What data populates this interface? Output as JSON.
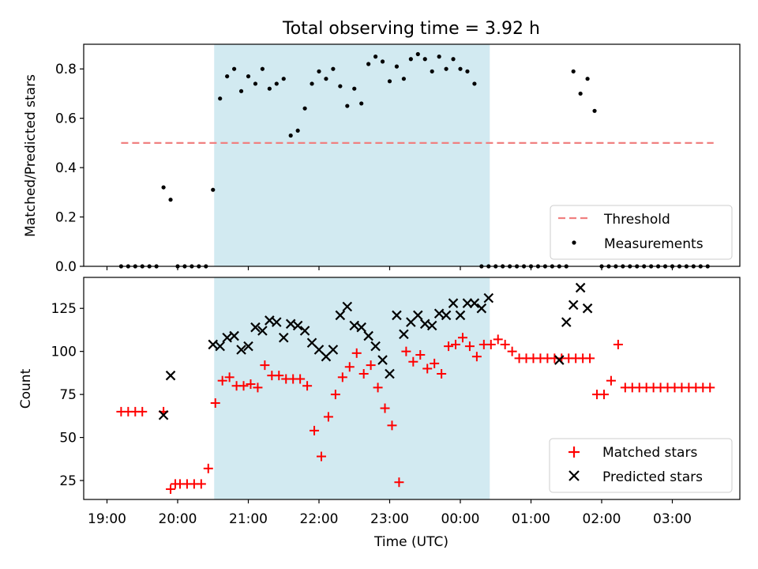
{
  "figure": {
    "title": "Total observing time = 3.92 h"
  },
  "chart_data": [
    {
      "type": "scatter",
      "title": "Total observing time = 3.92 h",
      "ylabel": "Matched/Predicted stars",
      "xlabel": "",
      "ylim": [
        0,
        0.9
      ],
      "yticks": [
        0.0,
        0.2,
        0.4,
        0.6,
        0.8
      ],
      "ytick_labels": [
        "0.0",
        "0.2",
        "0.4",
        "0.6",
        "0.8"
      ],
      "shaded_interval": {
        "start": "20:31",
        "end": "00:25",
        "color": "#add8e6"
      },
      "threshold": {
        "name": "Threshold",
        "value": 0.5,
        "start": "19:12",
        "end": "03:35",
        "color": "#f08080"
      },
      "legend": [
        "Threshold",
        "Measurements"
      ],
      "legend_loc": "lower right",
      "series": [
        {
          "name": "Measurements",
          "color": "#000000",
          "x": [
            "19:12",
            "19:18",
            "19:24",
            "19:30",
            "19:36",
            "19:42",
            "19:48",
            "19:54",
            "20:00",
            "20:06",
            "20:12",
            "20:18",
            "20:24",
            "20:30",
            "20:36",
            "20:42",
            "20:48",
            "20:54",
            "21:00",
            "21:06",
            "21:12",
            "21:18",
            "21:24",
            "21:30",
            "21:36",
            "21:42",
            "21:48",
            "21:54",
            "22:00",
            "22:06",
            "22:12",
            "22:18",
            "22:24",
            "22:30",
            "22:36",
            "22:42",
            "22:48",
            "22:54",
            "23:00",
            "23:06",
            "23:12",
            "23:18",
            "23:24",
            "23:30",
            "23:36",
            "23:42",
            "23:48",
            "23:54",
            "00:00",
            "00:06",
            "00:12",
            "00:18",
            "00:24",
            "00:30",
            "00:36",
            "00:42",
            "00:48",
            "00:54",
            "01:00",
            "01:06",
            "01:12",
            "01:18",
            "01:24",
            "01:30",
            "01:36",
            "01:42",
            "01:48",
            "01:54",
            "02:00",
            "02:06",
            "02:12",
            "02:18",
            "02:24",
            "02:30",
            "02:36",
            "02:42",
            "02:48",
            "02:54",
            "03:00",
            "03:06",
            "03:12",
            "03:18",
            "03:24",
            "03:30"
          ],
          "y": [
            0,
            0,
            0,
            0,
            0,
            0,
            0.32,
            0.27,
            0,
            0,
            0,
            0,
            0,
            0.31,
            0.68,
            0.77,
            0.8,
            0.71,
            0.77,
            0.74,
            0.8,
            0.72,
            0.74,
            0.76,
            0.53,
            0.55,
            0.64,
            0.74,
            0.79,
            0.76,
            0.8,
            0.73,
            0.65,
            0.72,
            0.66,
            0.82,
            0.85,
            0.83,
            0.75,
            0.81,
            0.76,
            0.84,
            0.86,
            0.84,
            0.79,
            0.85,
            0.8,
            0.84,
            0.8,
            0.79,
            0.74,
            0,
            0,
            0,
            0,
            0,
            0,
            0,
            0,
            0,
            0,
            0,
            0,
            0,
            0.79,
            0.7,
            0.76,
            0.63,
            0,
            0,
            0,
            0,
            0,
            0,
            0,
            0,
            0,
            0,
            0,
            0,
            0,
            0,
            0,
            0
          ]
        }
      ]
    },
    {
      "type": "scatter",
      "xlabel": "Time (UTC)",
      "ylabel": "Count",
      "ylim": [
        14,
        143
      ],
      "yticks": [
        25,
        50,
        75,
        100,
        125
      ],
      "ytick_labels": [
        "25",
        "50",
        "75",
        "100",
        "125"
      ],
      "xticks": [
        "19:00",
        "20:00",
        "21:00",
        "22:00",
        "23:00",
        "00:00",
        "01:00",
        "02:00",
        "03:00"
      ],
      "shaded_interval": {
        "start": "20:31",
        "end": "00:25",
        "color": "#add8e6"
      },
      "legend": [
        "Matched stars",
        "Predicted stars"
      ],
      "legend_loc": "lower right",
      "series": [
        {
          "name": "Matched stars",
          "color": "#ff0000",
          "marker": "+",
          "x": [
            "19:12",
            "19:18",
            "19:24",
            "19:30",
            "19:48",
            "19:54",
            "19:58",
            "20:02",
            "20:08",
            "20:14",
            "20:20",
            "20:26",
            "20:32",
            "20:38",
            "20:44",
            "20:50",
            "20:56",
            "21:02",
            "21:08",
            "21:14",
            "21:20",
            "21:26",
            "21:32",
            "21:38",
            "21:44",
            "21:50",
            "21:56",
            "22:02",
            "22:08",
            "22:14",
            "22:20",
            "22:26",
            "22:32",
            "22:38",
            "22:44",
            "22:50",
            "22:56",
            "23:02",
            "23:08",
            "23:14",
            "23:20",
            "23:26",
            "23:32",
            "23:38",
            "23:44",
            "23:50",
            "23:56",
            "00:02",
            "00:08",
            "00:14",
            "00:20",
            "00:26",
            "00:32",
            "00:38",
            "00:44",
            "00:50",
            "00:56",
            "01:02",
            "01:08",
            "01:14",
            "01:20",
            "01:26",
            "01:32",
            "01:38",
            "01:44",
            "01:50",
            "01:56",
            "02:02",
            "02:08",
            "02:14",
            "02:20",
            "02:26",
            "02:32",
            "02:38",
            "02:44",
            "02:50",
            "02:56",
            "03:02",
            "03:08",
            "03:14",
            "03:20",
            "03:26",
            "03:32"
          ],
          "y": [
            65,
            65,
            65,
            65,
            65,
            20,
            23,
            23,
            23,
            23,
            23,
            32,
            70,
            83,
            85,
            80,
            80,
            81,
            79,
            92,
            86,
            86,
            84,
            84,
            84,
            80,
            54,
            39,
            62,
            75,
            85,
            91,
            99,
            87,
            92,
            79,
            67,
            57,
            24,
            100,
            94,
            98,
            90,
            93,
            87,
            103,
            104,
            108,
            103,
            97,
            104,
            104,
            107,
            104,
            100,
            96,
            96,
            96,
            96,
            96,
            96,
            96,
            96,
            96,
            96,
            96,
            75,
            75,
            83,
            104,
            79,
            79,
            79,
            79,
            79,
            79,
            79,
            79,
            79,
            79,
            79,
            79,
            79
          ],
          "note_x_offset": "spaced"
        },
        {
          "name": "Predicted stars",
          "color": "#000000",
          "marker": "x",
          "x": [
            "19:48",
            "19:54",
            "20:30",
            "20:36",
            "20:42",
            "20:48",
            "20:54",
            "21:00",
            "21:06",
            "21:12",
            "21:18",
            "21:24",
            "21:30",
            "21:36",
            "21:42",
            "21:48",
            "21:54",
            "22:00",
            "22:06",
            "22:12",
            "22:18",
            "22:24",
            "22:30",
            "22:36",
            "22:42",
            "22:48",
            "22:54",
            "23:00",
            "23:06",
            "23:12",
            "23:18",
            "23:24",
            "23:30",
            "23:36",
            "23:42",
            "23:48",
            "23:54",
            "00:00",
            "00:06",
            "00:12",
            "00:18",
            "00:24",
            "01:24",
            "01:30",
            "01:36",
            "01:42",
            "01:48"
          ],
          "y": [
            63,
            86,
            104,
            103,
            108,
            109,
            101,
            103,
            114,
            112,
            118,
            117,
            108,
            116,
            115,
            112,
            105,
            101,
            97,
            101,
            121,
            126,
            115,
            114,
            109,
            103,
            95,
            87,
            121,
            110,
            117,
            121,
            116,
            115,
            122,
            121,
            128,
            121,
            128,
            128,
            125,
            131,
            95,
            117,
            127,
            137,
            125
          ]
        }
      ]
    }
  ]
}
